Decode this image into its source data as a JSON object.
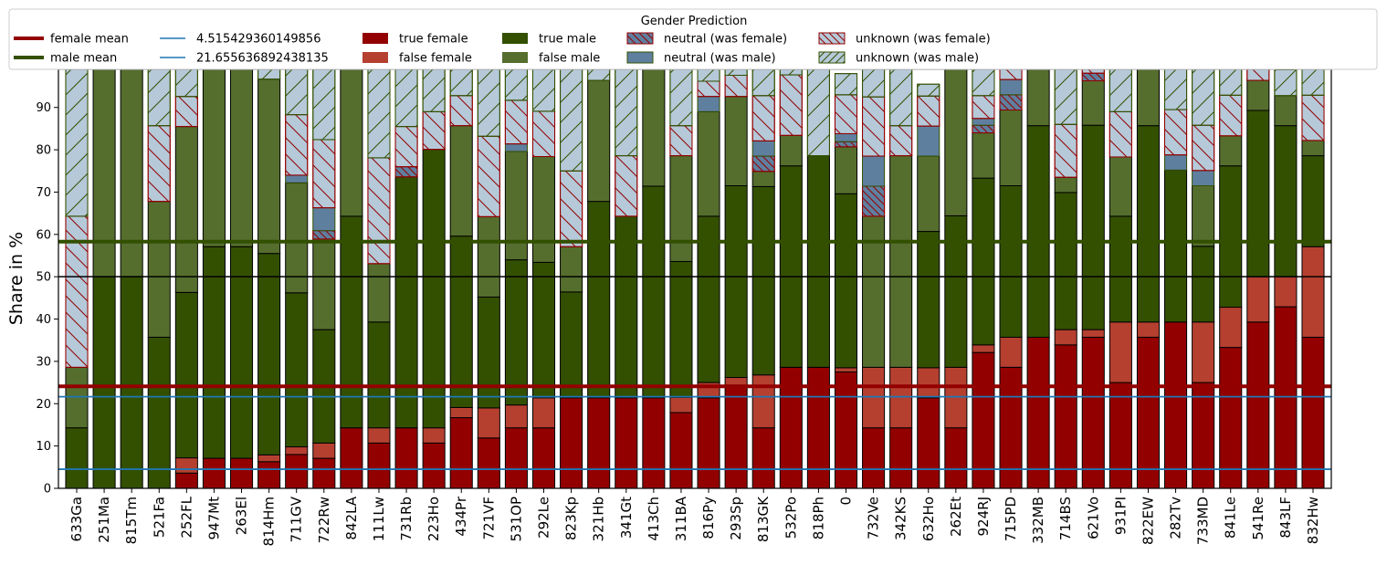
{
  "chart_data": {
    "type": "bar",
    "ylabel": "Share in %",
    "ylim": [
      0,
      99
    ],
    "yticks": [
      0,
      10,
      20,
      30,
      40,
      50,
      60,
      70,
      80,
      90
    ],
    "categories": [
      "633Ga",
      "251Ma",
      "815Tm",
      "521Fa",
      "252FL",
      "947Mt",
      "263El",
      "814Hm",
      "711GV",
      "722Rw",
      "842LA",
      "111Lw",
      "731Rb",
      "223Ho",
      "434Pr",
      "721VF",
      "531OP",
      "292Le",
      "823Kp",
      "321Hb",
      "341Gt",
      "413Ch",
      "311BA",
      "816Py",
      "293Sp",
      "813GK",
      "532Po",
      "818Ph",
      "0",
      "732Ve",
      "342KS",
      "632Ho",
      "262Et",
      "924RJ",
      "715PD",
      "332MB",
      "714BS",
      "621Vo",
      "931PI",
      "822EW",
      "282Tv",
      "733MD",
      "841Le",
      "541Re",
      "843LF",
      "832Hw"
    ],
    "series": [
      {
        "name": "true female",
        "color": "#930000",
        "values": [
          0,
          0,
          0,
          0,
          3.6,
          7.1,
          7.1,
          6.3,
          8.0,
          7.1,
          14.3,
          10.7,
          14.3,
          10.7,
          16.7,
          11.9,
          14.3,
          14.3,
          21.4,
          21.4,
          21.4,
          21.4,
          17.9,
          21.4,
          24.4,
          14.3,
          28.6,
          28.6,
          27.5,
          14.3,
          14.3,
          21.4,
          14.3,
          32.1,
          28.6,
          35.7,
          33.9,
          35.7,
          25.0,
          35.7,
          39.3,
          25.0,
          33.3,
          39.3,
          42.9,
          35.7
        ]
      },
      {
        "name": "false female",
        "color": "#b54030",
        "values": [
          0,
          0,
          0,
          0,
          3.6,
          0,
          0,
          1.6,
          1.8,
          3.6,
          0,
          3.6,
          0,
          3.6,
          2.4,
          7.1,
          5.4,
          7.1,
          0,
          0,
          0,
          0,
          3.6,
          3.6,
          1.8,
          12.5,
          0,
          0,
          1.0,
          14.3,
          14.3,
          7.1,
          14.3,
          1.8,
          7.1,
          0,
          3.6,
          1.8,
          14.3,
          3.6,
          0,
          14.3,
          9.5,
          10.7,
          7.1,
          21.4
        ]
      },
      {
        "name": "true male",
        "color": "#335000",
        "values": [
          14.3,
          50.0,
          50.0,
          35.7,
          39.1,
          50.0,
          50.0,
          47.6,
          36.4,
          26.8,
          50.0,
          25.0,
          59.3,
          65.8,
          40.5,
          26.2,
          34.3,
          32.0,
          25.0,
          46.4,
          42.9,
          50.0,
          32.1,
          39.3,
          45.3,
          44.5,
          47.6,
          50.0,
          41.1,
          0,
          0,
          32.2,
          35.8,
          39.4,
          35.8,
          50.0,
          32.4,
          48.3,
          25.0,
          46.4,
          35.9,
          17.9,
          33.4,
          39.3,
          35.7,
          21.5
        ]
      },
      {
        "name": "false male",
        "color": "#556e2e",
        "values": [
          14.3,
          49.0,
          49.0,
          32.1,
          39.2,
          42.0,
          42.0,
          41.2,
          26.0,
          21.4,
          35.0,
          13.8,
          0,
          0,
          26.1,
          19.0,
          25.6,
          25.0,
          10.7,
          28.6,
          0,
          28.0,
          25.0,
          24.7,
          21.1,
          3.6,
          7.2,
          0,
          11.1,
          35.7,
          50.0,
          17.8,
          35.6,
          10.7,
          17.9,
          13.3,
          3.6,
          10.5,
          14.0,
          14.3,
          0,
          14.3,
          7.1,
          7.1,
          7.1,
          3.6
        ]
      },
      {
        "name": "neutral (was female)",
        "color": "#5f7f9f",
        "edge": "#930000",
        "values": [
          0,
          0,
          0,
          0,
          0,
          0,
          0,
          0,
          0,
          2.0,
          0,
          0,
          2.4,
          0,
          0,
          0,
          0,
          0,
          0,
          0,
          0,
          0,
          0,
          0,
          0,
          3.6,
          0,
          0,
          1.2,
          7.1,
          0,
          0,
          0,
          1.8,
          3.6,
          0,
          0,
          1.8,
          0,
          0,
          0,
          0,
          0,
          0,
          0,
          0
        ]
      },
      {
        "name": "neutral (was male)",
        "color": "#5f7f9f",
        "edge": "#335000",
        "values": [
          0,
          0,
          0,
          0,
          0,
          0,
          0,
          0,
          1.8,
          5.4,
          0,
          0,
          0,
          0,
          0,
          0,
          1.8,
          0,
          0,
          0,
          0,
          0,
          0,
          3.6,
          0,
          3.6,
          0,
          0,
          1.9,
          7.1,
          0,
          7.1,
          0,
          1.6,
          3.6,
          0,
          0,
          0,
          0,
          0,
          3.6,
          3.6,
          0,
          0,
          0,
          0
        ]
      },
      {
        "name": "unknown (was female)",
        "color": "#b5c9d9",
        "edge": "#930000",
        "values": [
          35.7,
          0,
          0,
          17.9,
          7.1,
          0,
          0,
          0,
          14.3,
          16.1,
          0,
          25.0,
          9.5,
          8.9,
          7.1,
          19.0,
          10.3,
          10.7,
          17.9,
          0,
          14.3,
          0,
          7.1,
          3.6,
          5.0,
          10.7,
          14.3,
          0,
          9.2,
          14.0,
          7.1,
          7.1,
          0,
          5.4,
          3.6,
          0,
          12.5,
          1.8,
          10.7,
          0,
          10.7,
          10.7,
          9.6,
          3.6,
          0,
          10.7
        ]
      },
      {
        "name": "unknown (was male)",
        "color": "#b5c9d9",
        "edge": "#335000",
        "values": [
          34.7,
          0,
          0,
          13.3,
          6.4,
          0,
          0,
          2.3,
          11.7,
          17.1,
          0,
          21.4,
          23.0,
          10.0,
          6.2,
          16.7,
          7.3,
          10.0,
          24.1,
          2.6,
          20.4,
          0,
          13.4,
          2.8,
          1.4,
          9.2,
          1.9,
          20.4,
          5.0,
          6.5,
          13.6,
          2.8,
          0,
          6.2,
          3.1,
          0,
          13.5,
          0,
          10.0,
          0,
          10.0,
          13.2,
          6.1,
          2.0,
          6.1,
          6.1
        ]
      }
    ],
    "reference_lines": [
      {
        "name": "female mean",
        "value": 24.1,
        "color": "#930000"
      },
      {
        "name": "male mean",
        "value": 58.3,
        "color": "#335000"
      },
      {
        "name": "4.515429360149856",
        "value": 4.515429360149856,
        "color": "#1f77b4"
      },
      {
        "name": "21.655636892438135",
        "value": 21.655636892438135,
        "color": "#1f77b4"
      },
      {
        "name": "",
        "value": 50,
        "color": "#000000"
      }
    ],
    "legend": {
      "title": "Gender Prediction",
      "placement": "top",
      "entries": [
        {
          "label": "female mean",
          "kind": "line",
          "color": "#930000"
        },
        {
          "label": "male mean",
          "kind": "line",
          "color": "#335000"
        },
        {
          "label": "4.515429360149856",
          "kind": "thinline",
          "color": "#1f77b4"
        },
        {
          "label": "21.655636892438135",
          "kind": "thinline",
          "color": "#1f77b4"
        },
        {
          "label": "true female",
          "kind": "patch",
          "color": "#930000"
        },
        {
          "label": "false female",
          "kind": "patch",
          "color": "#b54030"
        },
        {
          "label": "true male",
          "kind": "patch",
          "color": "#335000"
        },
        {
          "label": "false male",
          "kind": "patch",
          "color": "#556e2e"
        },
        {
          "label": "neutral (was female)",
          "kind": "hatch-back",
          "color": "#5f7f9f",
          "edge": "#930000"
        },
        {
          "label": "neutral (was male)",
          "kind": "plain-edge",
          "color": "#5f7f9f",
          "edge": "#335000"
        },
        {
          "label": "unknown (was female)",
          "kind": "hatch-back",
          "color": "#b5c9d9",
          "edge": "#930000"
        },
        {
          "label": "unknown (was male)",
          "kind": "hatch-fwd",
          "color": "#b5c9d9",
          "edge": "#335000"
        }
      ]
    }
  }
}
